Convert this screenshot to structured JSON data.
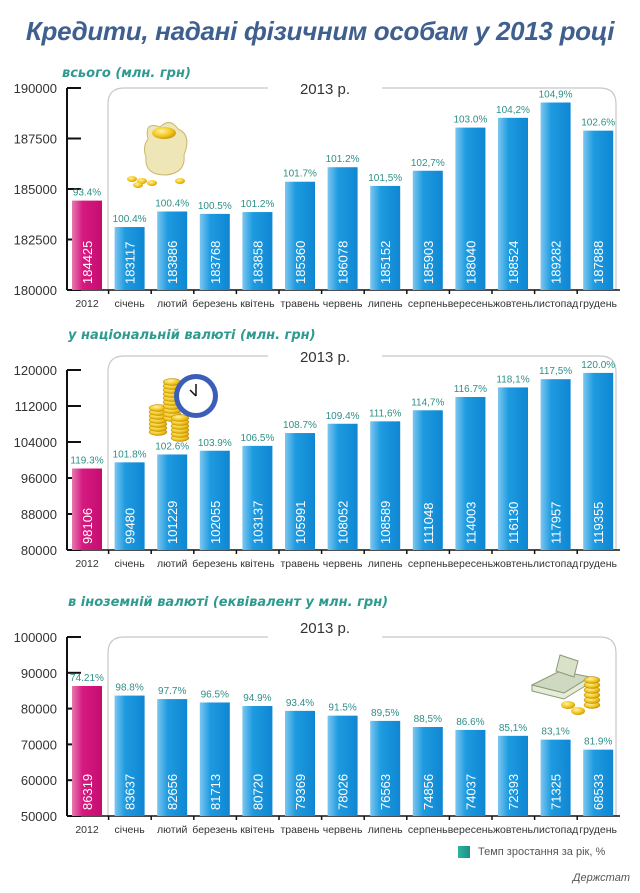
{
  "title": "Кредити, надані фізичним особам у 2013 році",
  "year_label": "2013 р.",
  "colors": {
    "title": "#3f5f8f",
    "subtitle": "#2f9a8f",
    "pct_label": "#2f8f88",
    "bar_2013": "#1a96dc",
    "bar_2012": "#d3157a"
  },
  "legend": {
    "label": "Темп зростання за рік, %"
  },
  "source": "Держстат",
  "chart_data": [
    {
      "type": "bar",
      "title": "всього (млн. грн)",
      "icon": "money-bag-icon",
      "categories": [
        "2012",
        "січень",
        "лютий",
        "березень",
        "квітень",
        "травень",
        "червень",
        "липень",
        "серпень",
        "вересень",
        "жовтень",
        "листопад",
        "грудень"
      ],
      "values": [
        184425,
        183117,
        183886,
        183768,
        183858,
        185360,
        186078,
        185152,
        185903,
        188040,
        188524,
        189282,
        187888
      ],
      "growth_labels": [
        "93.4%",
        "100.4%",
        "100.4%",
        "100.5%",
        "101.2%",
        "101.7%",
        "101.2%",
        "101,5%",
        "102,7%",
        "103.0%",
        "104,2%",
        "104,9%",
        "102.6%"
      ],
      "ylim": [
        180000,
        190000
      ],
      "yticks": [
        180000,
        182500,
        185000,
        187500,
        190000
      ],
      "ytick_labels": [
        "180000",
        "182500",
        "185000",
        "187500",
        "190000"
      ]
    },
    {
      "type": "bar",
      "title": "у національній валюті (млн. грн)",
      "icon": "coins-clock-icon",
      "categories": [
        "2012",
        "січень",
        "лютий",
        "березень",
        "квітень",
        "травень",
        "червень",
        "липень",
        "серпень",
        "вересень",
        "жовтень",
        "листопад",
        "грудень"
      ],
      "values": [
        98106,
        99480,
        101229,
        102055,
        103137,
        105991,
        108052,
        108589,
        111048,
        114003,
        116130,
        117957,
        119355
      ],
      "growth_labels": [
        "119.3%",
        "101.8%",
        "102.6%",
        "103.9%",
        "106.5%",
        "108.7%",
        "109.4%",
        "111,6%",
        "114,7%",
        "116.7%",
        "118,1%",
        "117,5%",
        "120.0%"
      ],
      "ylim": [
        80000,
        120000
      ],
      "yticks": [
        80000,
        88000,
        96000,
        104000,
        112000,
        120000
      ],
      "ytick_labels": [
        "80000",
        "88000",
        "96000",
        "104000",
        "112000",
        "120000"
      ]
    },
    {
      "type": "bar",
      "title": "в іноземній валюті (еквівалент у млн. грн)",
      "icon": "cash-coins-icon",
      "categories": [
        "2012",
        "січень",
        "лютий",
        "березень",
        "квітень",
        "травень",
        "червень",
        "липень",
        "серпень",
        "вересень",
        "жовтень",
        "листопад",
        "грудень"
      ],
      "values": [
        86319,
        83637,
        82656,
        81713,
        80720,
        79369,
        78026,
        76563,
        74856,
        74037,
        72393,
        71325,
        68533
      ],
      "growth_labels": [
        "74.21%",
        "98.8%",
        "97.7%",
        "96.5%",
        "94.9%",
        "93.4%",
        "91.5%",
        "89,5%",
        "88,5%",
        "86.6%",
        "85,1%",
        "83,1%",
        "81.9%"
      ],
      "ylim": [
        50000,
        100000
      ],
      "yticks": [
        50000,
        60000,
        70000,
        80000,
        90000,
        100000
      ],
      "ytick_labels": [
        "50000",
        "60000",
        "70000",
        "80000",
        "90000",
        "100000"
      ]
    }
  ]
}
